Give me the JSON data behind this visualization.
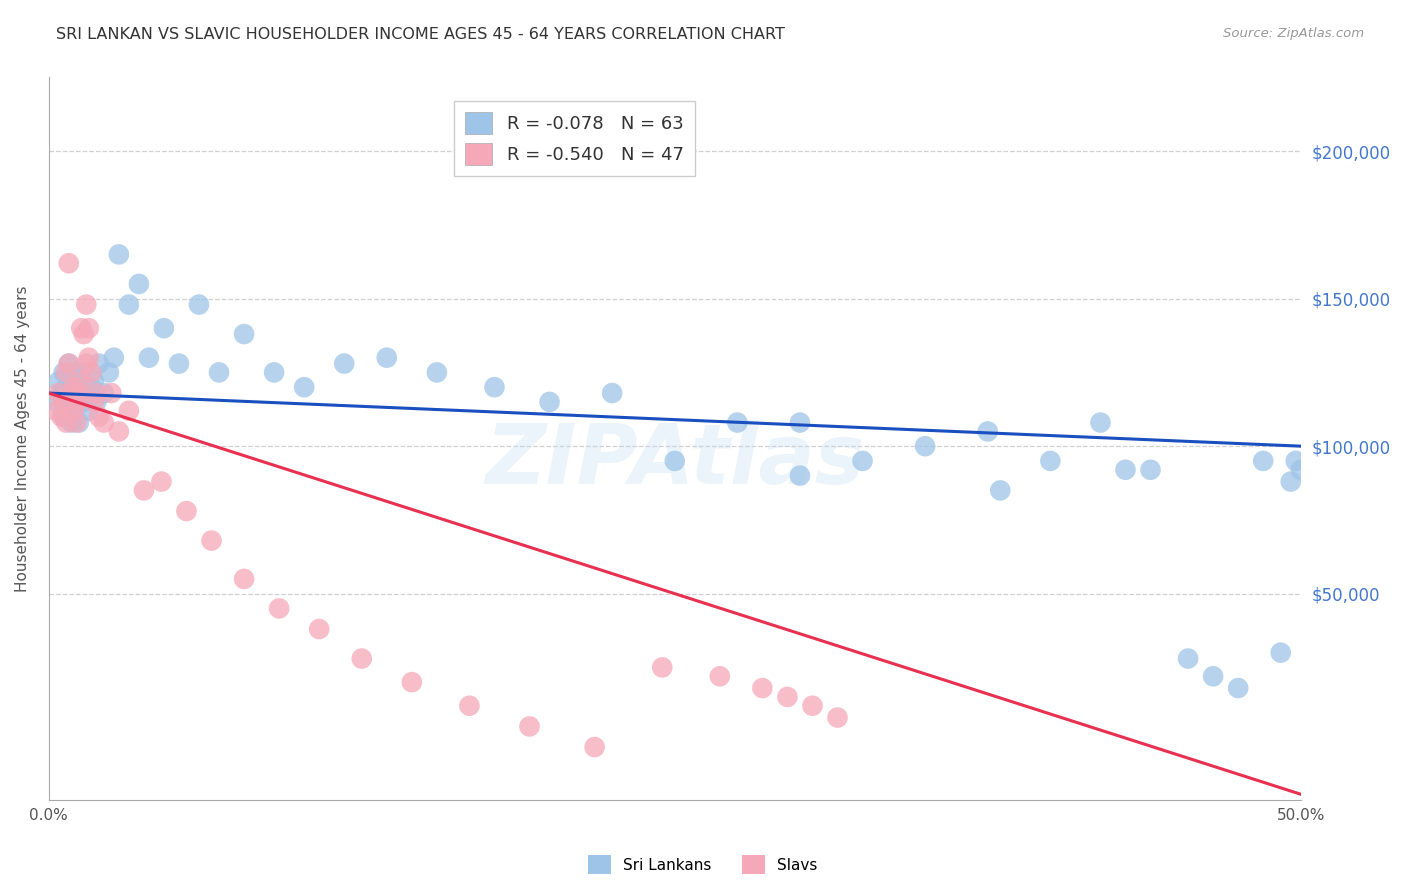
{
  "title": "SRI LANKAN VS SLAVIC HOUSEHOLDER INCOME AGES 45 - 64 YEARS CORRELATION CHART",
  "source": "Source: ZipAtlas.com",
  "ylabel": "Householder Income Ages 45 - 64 years",
  "x_min": 0.0,
  "x_max": 0.5,
  "y_min": -20000,
  "y_max": 225000,
  "yticks": [
    50000,
    100000,
    150000,
    200000
  ],
  "ytick_labels": [
    "$50,000",
    "$100,000",
    "$150,000",
    "$200,000"
  ],
  "background_color": "#ffffff",
  "grid_color": "#d0d0d0",
  "sri_lankans_color": "#9ec4e8",
  "slavs_color": "#f5a8b8",
  "sri_lankans_line_color": "#1a4fbf",
  "slavs_line_color": "#e83050",
  "legend_R_sri": "R = -0.078",
  "legend_N_sri": "N = 63",
  "legend_R_slavs": "R = -0.540",
  "legend_N_slavs": "N = 47",
  "watermark": "ZIPAtlas",
  "sri_x": [
    0.003,
    0.004,
    0.005,
    0.006,
    0.006,
    0.007,
    0.008,
    0.008,
    0.009,
    0.009,
    0.01,
    0.01,
    0.011,
    0.012,
    0.012,
    0.013,
    0.014,
    0.015,
    0.016,
    0.017,
    0.018,
    0.019,
    0.02,
    0.022,
    0.024,
    0.026,
    0.028,
    0.032,
    0.036,
    0.04,
    0.046,
    0.052,
    0.06,
    0.068,
    0.078,
    0.09,
    0.102,
    0.118,
    0.135,
    0.155,
    0.178,
    0.2,
    0.225,
    0.25,
    0.275,
    0.3,
    0.325,
    0.35,
    0.375,
    0.4,
    0.42,
    0.44,
    0.455,
    0.465,
    0.475,
    0.485,
    0.492,
    0.496,
    0.498,
    0.5,
    0.3,
    0.38,
    0.43
  ],
  "sri_y": [
    115000,
    122000,
    118000,
    110000,
    125000,
    120000,
    128000,
    115000,
    108000,
    122000,
    112000,
    125000,
    118000,
    108000,
    120000,
    125000,
    115000,
    118000,
    112000,
    120000,
    122000,
    115000,
    128000,
    118000,
    125000,
    130000,
    165000,
    148000,
    155000,
    130000,
    140000,
    128000,
    148000,
    125000,
    138000,
    125000,
    120000,
    128000,
    130000,
    125000,
    120000,
    115000,
    118000,
    95000,
    108000,
    90000,
    95000,
    100000,
    105000,
    95000,
    108000,
    92000,
    28000,
    22000,
    18000,
    95000,
    30000,
    88000,
    95000,
    92000,
    108000,
    85000,
    92000
  ],
  "slavs_x": [
    0.003,
    0.004,
    0.005,
    0.006,
    0.007,
    0.007,
    0.008,
    0.008,
    0.009,
    0.01,
    0.01,
    0.011,
    0.011,
    0.012,
    0.013,
    0.013,
    0.014,
    0.015,
    0.015,
    0.016,
    0.016,
    0.017,
    0.018,
    0.019,
    0.02,
    0.022,
    0.025,
    0.028,
    0.032,
    0.038,
    0.045,
    0.055,
    0.065,
    0.078,
    0.092,
    0.108,
    0.125,
    0.145,
    0.168,
    0.192,
    0.218,
    0.245,
    0.268,
    0.285,
    0.295,
    0.305,
    0.315
  ],
  "slavs_y": [
    112000,
    118000,
    110000,
    115000,
    125000,
    108000,
    128000,
    162000,
    118000,
    112000,
    120000,
    115000,
    108000,
    118000,
    140000,
    122000,
    138000,
    148000,
    128000,
    140000,
    130000,
    125000,
    115000,
    118000,
    110000,
    108000,
    118000,
    105000,
    112000,
    85000,
    88000,
    78000,
    68000,
    55000,
    45000,
    38000,
    28000,
    20000,
    12000,
    5000,
    -2000,
    25000,
    22000,
    18000,
    15000,
    12000,
    8000
  ],
  "sri_line_x0": 0.0,
  "sri_line_x1": 0.5,
  "sri_line_y0": 118000,
  "sri_line_y1": 100000,
  "slavs_line_x0": 0.0,
  "slavs_line_x1": 0.5,
  "slavs_line_y0": 118000,
  "slavs_line_y1": -18000
}
